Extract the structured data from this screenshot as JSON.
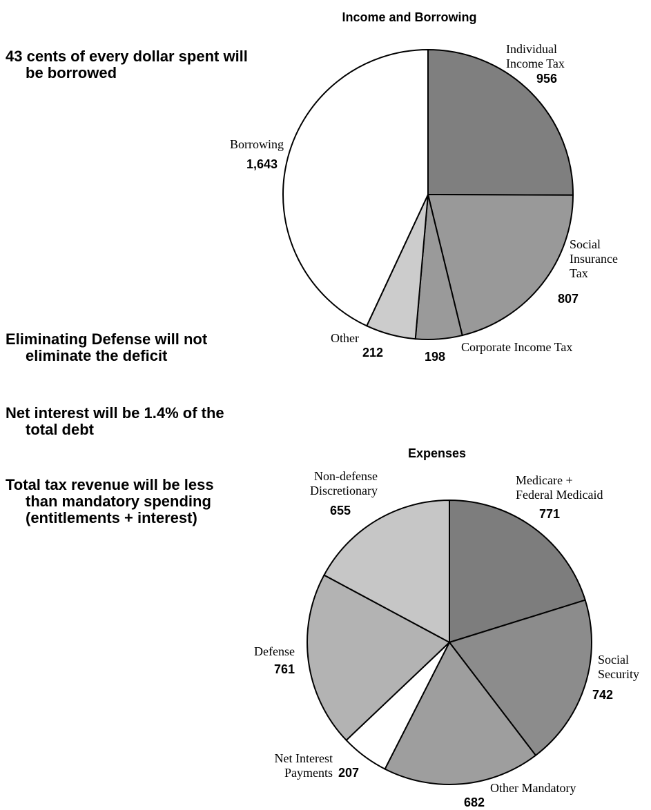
{
  "bullets": [
    {
      "line1": "43 cents of every dollar spent will",
      "line2": "be borrowed"
    },
    {
      "line1": "Eliminating Defense will not",
      "line2": "eliminate the deficit"
    },
    {
      "line1": "Net interest will be 1.4% of the",
      "line2": "total debt"
    },
    {
      "line1": "Total tax revenue will be less",
      "line2": "than mandatory spending",
      "line3": "(entitlements + interest)"
    }
  ],
  "chart_data": [
    {
      "type": "pie",
      "title": "Income and Borrowing",
      "slices": [
        {
          "label": [
            "Individual",
            "Income Tax"
          ],
          "value": 956,
          "value_text": "956",
          "color": "#7f7f7f"
        },
        {
          "label": [
            "Social",
            "Insurance",
            "Tax"
          ],
          "value": 807,
          "value_text": "807",
          "color": "#999999"
        },
        {
          "label": [
            "Corporate Income Tax"
          ],
          "value": 198,
          "value_text": "198",
          "color": "#9a9a9a"
        },
        {
          "label": [
            "Other"
          ],
          "value": 212,
          "value_text": "212",
          "color": "#cccccc"
        },
        {
          "label": [
            "Borrowing"
          ],
          "value": 1643,
          "value_text": "1,643",
          "color": "#ffffff"
        }
      ]
    },
    {
      "type": "pie",
      "title": "Expenses",
      "slices": [
        {
          "label": [
            "Medicare +",
            "Federal Medicaid"
          ],
          "value": 771,
          "value_text": "771",
          "color": "#7d7d7d"
        },
        {
          "label": [
            "Social",
            "Security"
          ],
          "value": 742,
          "value_text": "742",
          "color": "#8c8c8c"
        },
        {
          "label": [
            "Other Mandatory"
          ],
          "value": 682,
          "value_text": "682",
          "color": "#9e9e9e"
        },
        {
          "label": [
            "Net Interest",
            "Payments"
          ],
          "value": 207,
          "value_text": "207",
          "color": "#ffffff"
        },
        {
          "label": [
            "Defense"
          ],
          "value": 761,
          "value_text": "761",
          "color": "#b3b3b3"
        },
        {
          "label": [
            "Non-defense",
            "Discretionary"
          ],
          "value": 655,
          "value_text": "655",
          "color": "#c6c6c6"
        }
      ]
    }
  ]
}
